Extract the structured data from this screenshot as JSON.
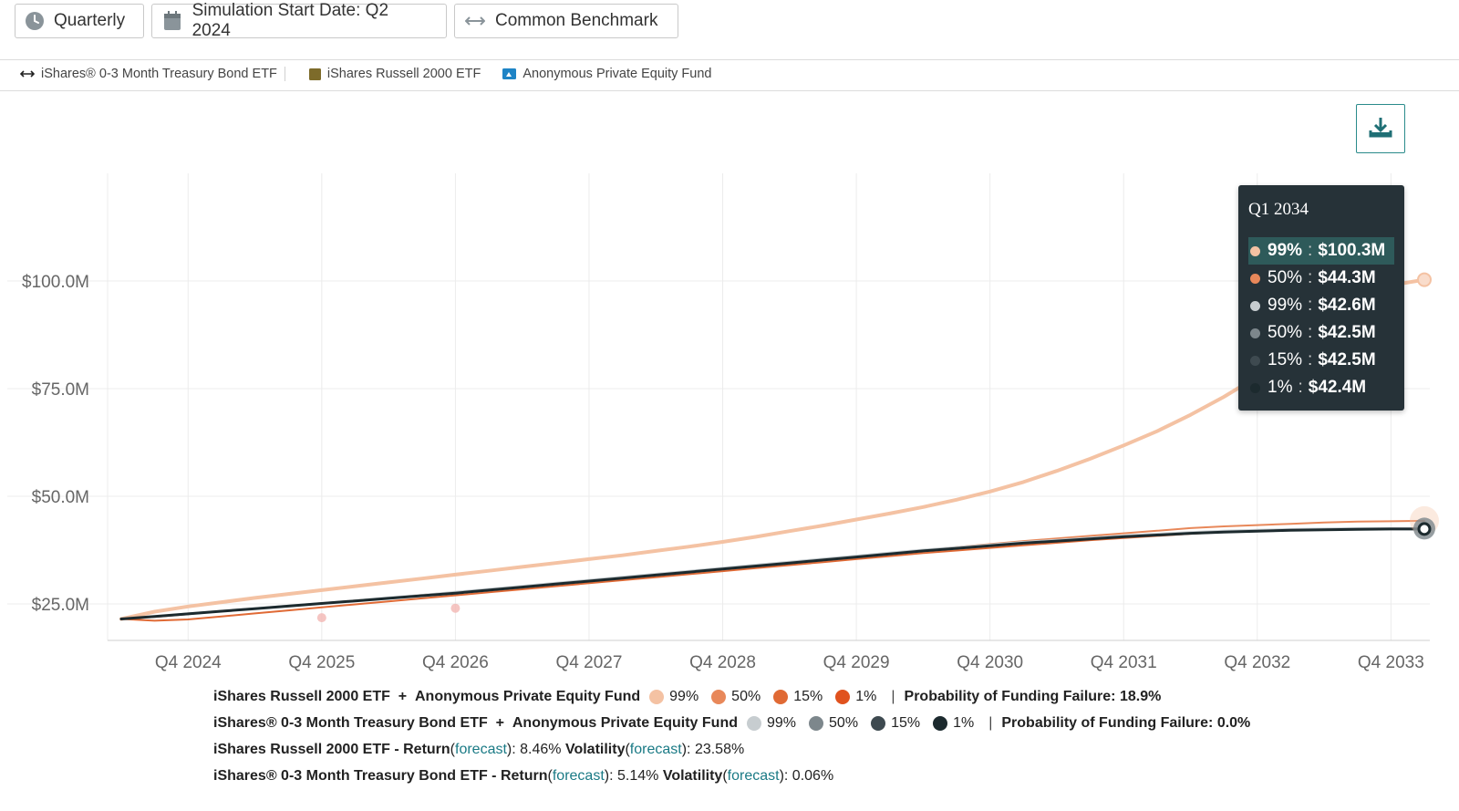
{
  "toolbar": {
    "frequency_label": "Quarterly",
    "start_date_label": "Simulation Start Date: Q2 2024",
    "benchmark_label": "Common Benchmark"
  },
  "legend_top": [
    {
      "label": "iShares® 0-3 Month Treasury Bond ETF",
      "icon": "double-arrow-icon"
    },
    {
      "label": "iShares Russell 2000 ETF",
      "icon": "olive-square-icon"
    },
    {
      "label": "Anonymous Private Equity Fund",
      "icon": "blue-fund-icon"
    }
  ],
  "tooltip": {
    "title": "Q1 2034",
    "rows": [
      {
        "pct": "99%",
        "value": "$100.3M",
        "color": "#f4c2a3"
      },
      {
        "pct": "50%",
        "value": "$44.3M",
        "color": "#e8885a"
      },
      {
        "pct": "99%",
        "value": "$42.6M",
        "color": "#c7cdd0"
      },
      {
        "pct": "50%",
        "value": "$42.5M",
        "color": "#7d878c"
      },
      {
        "pct": "15%",
        "value": "$42.5M",
        "color": "#3e4a50"
      },
      {
        "pct": "1%",
        "value": "$42.4M",
        "color": "#1c2a2e"
      }
    ]
  },
  "chart_data": {
    "type": "line",
    "x": [
      "Q2 2024",
      "Q3 2024",
      "Q4 2024",
      "Q1 2025",
      "Q2 2025",
      "Q3 2025",
      "Q4 2025",
      "Q1 2026",
      "Q2 2026",
      "Q3 2026",
      "Q4 2026",
      "Q1 2027",
      "Q2 2027",
      "Q3 2027",
      "Q4 2027",
      "Q1 2028",
      "Q2 2028",
      "Q3 2028",
      "Q4 2028",
      "Q1 2029",
      "Q2 2029",
      "Q3 2029",
      "Q4 2029",
      "Q1 2030",
      "Q2 2030",
      "Q3 2030",
      "Q4 2030",
      "Q1 2031",
      "Q2 2031",
      "Q3 2031",
      "Q4 2031",
      "Q1 2032",
      "Q2 2032",
      "Q3 2032",
      "Q4 2032",
      "Q1 2033",
      "Q2 2033",
      "Q3 2033",
      "Q4 2033",
      "Q1 2034"
    ],
    "xticks": [
      "Q4 2024",
      "Q4 2025",
      "Q4 2026",
      "Q4 2027",
      "Q4 2028",
      "Q4 2029",
      "Q4 2030",
      "Q4 2031",
      "Q4 2032",
      "Q4 2033"
    ],
    "yticks": [
      "$25.0M",
      "$50.0M",
      "$75.0M",
      "$100.0M"
    ],
    "ytick_values": [
      25,
      50,
      75,
      100
    ],
    "ylim": [
      20,
      125
    ],
    "grid": true,
    "units": "$M",
    "series": [
      {
        "name": "99%",
        "color": "#f4c2a3",
        "width": 4,
        "values": [
          21.5,
          23.2,
          24.4,
          25.4,
          26.4,
          27.3,
          28.2,
          29.1,
          30.0,
          30.9,
          31.8,
          32.7,
          33.6,
          34.5,
          35.4,
          36.3,
          37.3,
          38.3,
          39.4,
          40.6,
          41.9,
          43.2,
          44.6,
          46.0,
          47.5,
          49.2,
          51.1,
          53.3,
          55.9,
          58.7,
          61.8,
          65.1,
          68.9,
          73.1,
          77.8,
          83.0,
          88.5,
          94.3,
          99.0,
          100.3
        ]
      },
      {
        "name": "50%",
        "color": "#e8885a",
        "width": 2,
        "values": [
          21.5,
          22.0,
          22.6,
          23.3,
          23.9,
          24.5,
          25.1,
          25.8,
          26.4,
          27.1,
          27.7,
          28.4,
          29.1,
          29.8,
          30.5,
          31.2,
          31.9,
          32.6,
          33.3,
          34.0,
          34.7,
          35.4,
          36.1,
          36.8,
          37.5,
          38.2,
          38.9,
          39.6,
          40.2,
          40.8,
          41.4,
          42.0,
          42.6,
          43.0,
          43.3,
          43.6,
          43.9,
          44.1,
          44.2,
          44.3
        ]
      },
      {
        "name": "15%",
        "color": "#e06a35",
        "width": 2,
        "values": [
          21.5,
          21.1,
          21.4,
          22.1,
          22.8,
          23.5,
          24.2,
          24.9,
          25.6,
          26.3,
          27.0,
          27.7,
          28.4,
          29.1,
          29.8,
          30.5,
          31.2,
          31.9,
          32.6,
          33.3,
          34.0,
          34.7,
          35.4,
          36.1,
          36.8,
          37.4,
          38.0,
          38.6,
          39.2,
          39.8,
          40.3,
          40.8,
          41.3,
          41.7,
          42.0,
          42.2,
          42.3,
          42.4,
          42.4,
          42.4
        ]
      },
      {
        "name": "99%",
        "color": "#c7cdd0",
        "width": 2,
        "values": [
          21.5,
          22.1,
          22.8,
          23.4,
          24.0,
          24.6,
          25.2,
          25.8,
          26.5,
          27.1,
          27.8,
          28.5,
          29.2,
          29.9,
          30.6,
          31.3,
          32.0,
          32.7,
          33.4,
          34.1,
          34.8,
          35.5,
          36.2,
          36.9,
          37.6,
          38.2,
          38.8,
          39.4,
          39.9,
          40.4,
          40.9,
          41.3,
          41.7,
          42.0,
          42.2,
          42.4,
          42.5,
          42.6,
          42.6,
          42.6
        ]
      },
      {
        "name": "1%",
        "color": "#1c2a2e",
        "width": 3,
        "values": [
          21.5,
          22.1,
          22.7,
          23.3,
          23.9,
          24.5,
          25.1,
          25.7,
          26.3,
          26.9,
          27.5,
          28.2,
          28.9,
          29.6,
          30.3,
          31.0,
          31.7,
          32.4,
          33.1,
          33.8,
          34.5,
          35.2,
          35.9,
          36.6,
          37.3,
          37.9,
          38.5,
          39.1,
          39.6,
          40.1,
          40.6,
          41.0,
          41.4,
          41.7,
          41.9,
          42.1,
          42.2,
          42.3,
          42.4,
          42.4
        ]
      }
    ]
  },
  "bottom_legend": {
    "row1": {
      "combo_a": "iShares Russell 2000 ETF",
      "plus": "+",
      "combo_b": "Anonymous Private Equity Fund",
      "items": [
        {
          "pct": "99%",
          "color": "#f4c2a3"
        },
        {
          "pct": "50%",
          "color": "#e8885a"
        },
        {
          "pct": "15%",
          "color": "#e06a35"
        },
        {
          "pct": "1%",
          "color": "#e0521e"
        }
      ],
      "divider": "|",
      "failure": "Probability of Funding Failure: 18.9%"
    },
    "row2": {
      "combo_a": "iShares® 0-3 Month Treasury Bond ETF",
      "plus": "+",
      "combo_b": "Anonymous Private Equity Fund",
      "items": [
        {
          "pct": "99%",
          "color": "#c7cdd0"
        },
        {
          "pct": "50%",
          "color": "#7d878c"
        },
        {
          "pct": "15%",
          "color": "#3e4a50"
        },
        {
          "pct": "1%",
          "color": "#1c2a2e"
        }
      ],
      "divider": "|",
      "failure": "Probability of Funding Failure: 0.0%"
    },
    "row3": {
      "name": "iShares Russell 2000 ETF - ",
      "return_label": "Return",
      "open": " (",
      "link1": "forecast",
      "mid1": "): 8.46% ",
      "vol_label": "Volatility",
      "open2": " (",
      "link2": "forecast",
      "end": "): 23.58%"
    },
    "row4": {
      "name": "iShares® 0-3 Month Treasury Bond ETF - ",
      "return_label": "Return",
      "open": " (",
      "link1": "forecast",
      "mid1": "): 5.14% ",
      "vol_label": "Volatility",
      "open2": " (",
      "link2": "forecast",
      "end": "): 0.06%"
    }
  }
}
